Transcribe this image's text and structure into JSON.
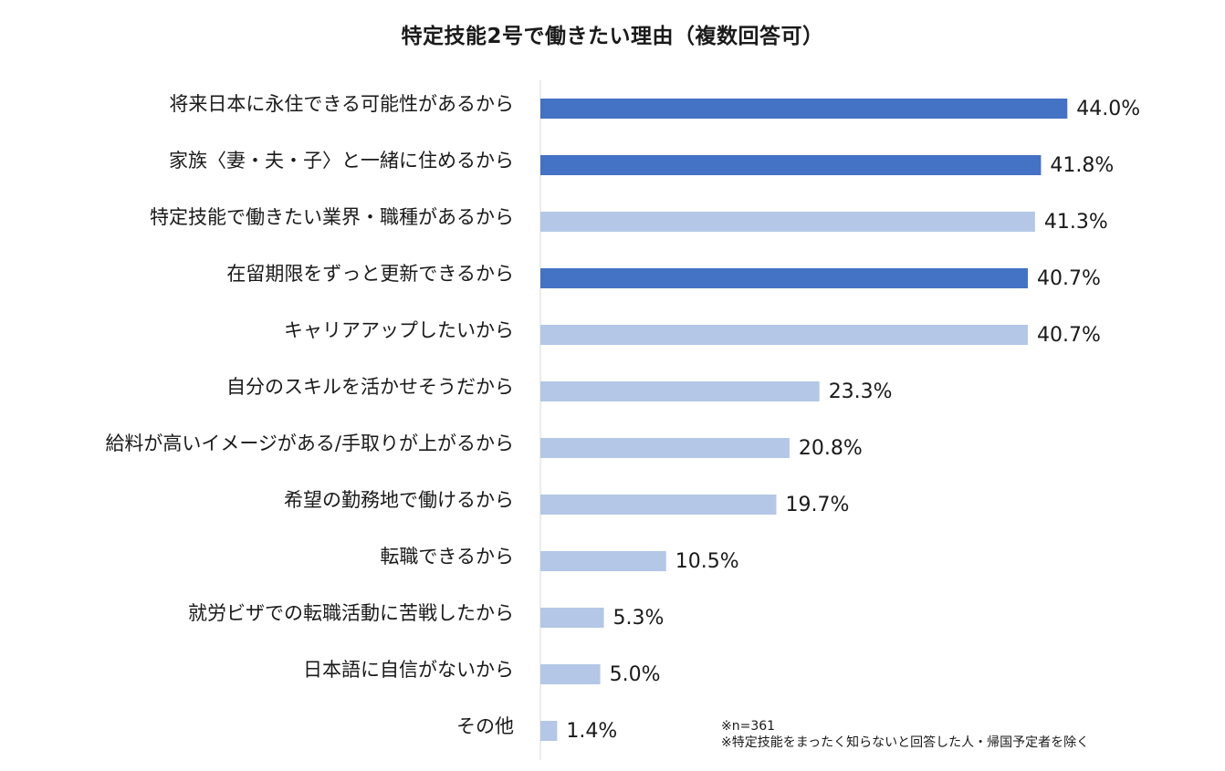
{
  "chart_data": {
    "type": "bar",
    "orientation": "horizontal",
    "title": "特定技能2号で働きたい理由（複数回答可）",
    "categories": [
      "将来日本に永住できる可能性があるから",
      "家族〈妻・夫・子〉と一緒に住めるから",
      "特定技能で働きたい業界・職種があるから",
      "在留期限をずっと更新できるから",
      "キャリアアップしたいから",
      "自分のスキルを活かせそうだから",
      "給料が高いイメージがある/手取りが上がるから",
      "希望の勤務地で働けるから",
      "転職できるから",
      "就労ビザでの転職活動に苦戦したから",
      "日本語に自信がないから",
      "その他"
    ],
    "values": [
      44.0,
      41.8,
      41.3,
      40.7,
      40.7,
      23.3,
      20.8,
      19.7,
      10.5,
      5.3,
      5.0,
      1.4
    ],
    "value_labels": [
      "44.0%",
      "41.8%",
      "41.3%",
      "40.7%",
      "40.7%",
      "23.3%",
      "20.8%",
      "19.7%",
      "10.5%",
      "5.3%",
      "5.0%",
      "1.4%"
    ],
    "highlighted": [
      true,
      true,
      false,
      true,
      false,
      false,
      false,
      false,
      false,
      false,
      false,
      false
    ],
    "xlim": [
      0,
      50
    ],
    "xlabel": "",
    "ylabel": "",
    "grid": false,
    "legend": "none"
  },
  "colors": {
    "highlight_bar": "#4472C4",
    "normal_bar": "#B4C7E7",
    "axis_line": "#d9d9d9",
    "text": "#1a1a1a"
  },
  "footnote": {
    "line1": "※n=361",
    "line2": "※特定技能をまったく知らないと回答した人・帰国予定者を除く"
  }
}
